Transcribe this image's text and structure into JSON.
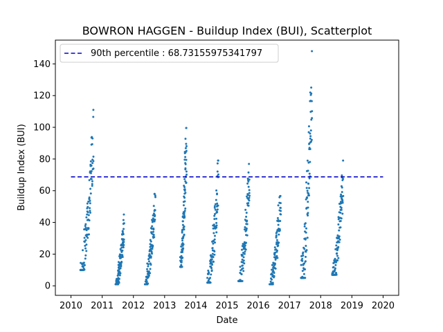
{
  "chart_data": {
    "type": "scatter",
    "title": "BOWRON HAGGEN - Buildup Index (BUI), Scatterplot",
    "xlabel": "Date",
    "ylabel": "Buildup Index (BUI)",
    "xlim": [
      2009.5,
      2020.5
    ],
    "ylim": [
      -6,
      155
    ],
    "x_ticks": [
      2010,
      2011,
      2012,
      2013,
      2014,
      2015,
      2016,
      2017,
      2018,
      2019,
      2020
    ],
    "y_ticks": [
      0,
      20,
      40,
      60,
      80,
      100,
      120,
      140
    ],
    "grid": false,
    "legend_position": "top-left",
    "point_color": "#1f77b4",
    "threshold": {
      "label": "90th percentile : 68.73155975341797",
      "value": 68.73155975341797,
      "x_start": 2010,
      "x_end": 2020,
      "color": "#0000cc",
      "style": "dashed"
    },
    "seasons": [
      {
        "year": 2010,
        "x_start": 2010.3,
        "x_end": 2010.72,
        "y_min": 10,
        "y_max": 111
      },
      {
        "year": 2011,
        "x_start": 2011.43,
        "x_end": 2011.7,
        "y_min": 1,
        "y_max": 45
      },
      {
        "year": 2012,
        "x_start": 2012.37,
        "x_end": 2012.7,
        "y_min": 1,
        "y_max": 63
      },
      {
        "year": 2013,
        "x_start": 2013.5,
        "x_end": 2013.7,
        "y_min": 12,
        "y_max": 105
      },
      {
        "year": 2014,
        "x_start": 2014.37,
        "x_end": 2014.72,
        "y_min": 2,
        "y_max": 79
      },
      {
        "year": 2015,
        "x_start": 2015.37,
        "x_end": 2015.72,
        "y_min": 3,
        "y_max": 81
      },
      {
        "year": 2016,
        "x_start": 2016.37,
        "x_end": 2016.72,
        "y_min": 1,
        "y_max": 64
      },
      {
        "year": 2017,
        "x_start": 2017.37,
        "x_end": 2017.72,
        "y_min": 5,
        "y_max": 148
      },
      {
        "year": 2018,
        "x_start": 2018.37,
        "x_end": 2018.72,
        "y_min": 7,
        "y_max": 79
      }
    ]
  }
}
